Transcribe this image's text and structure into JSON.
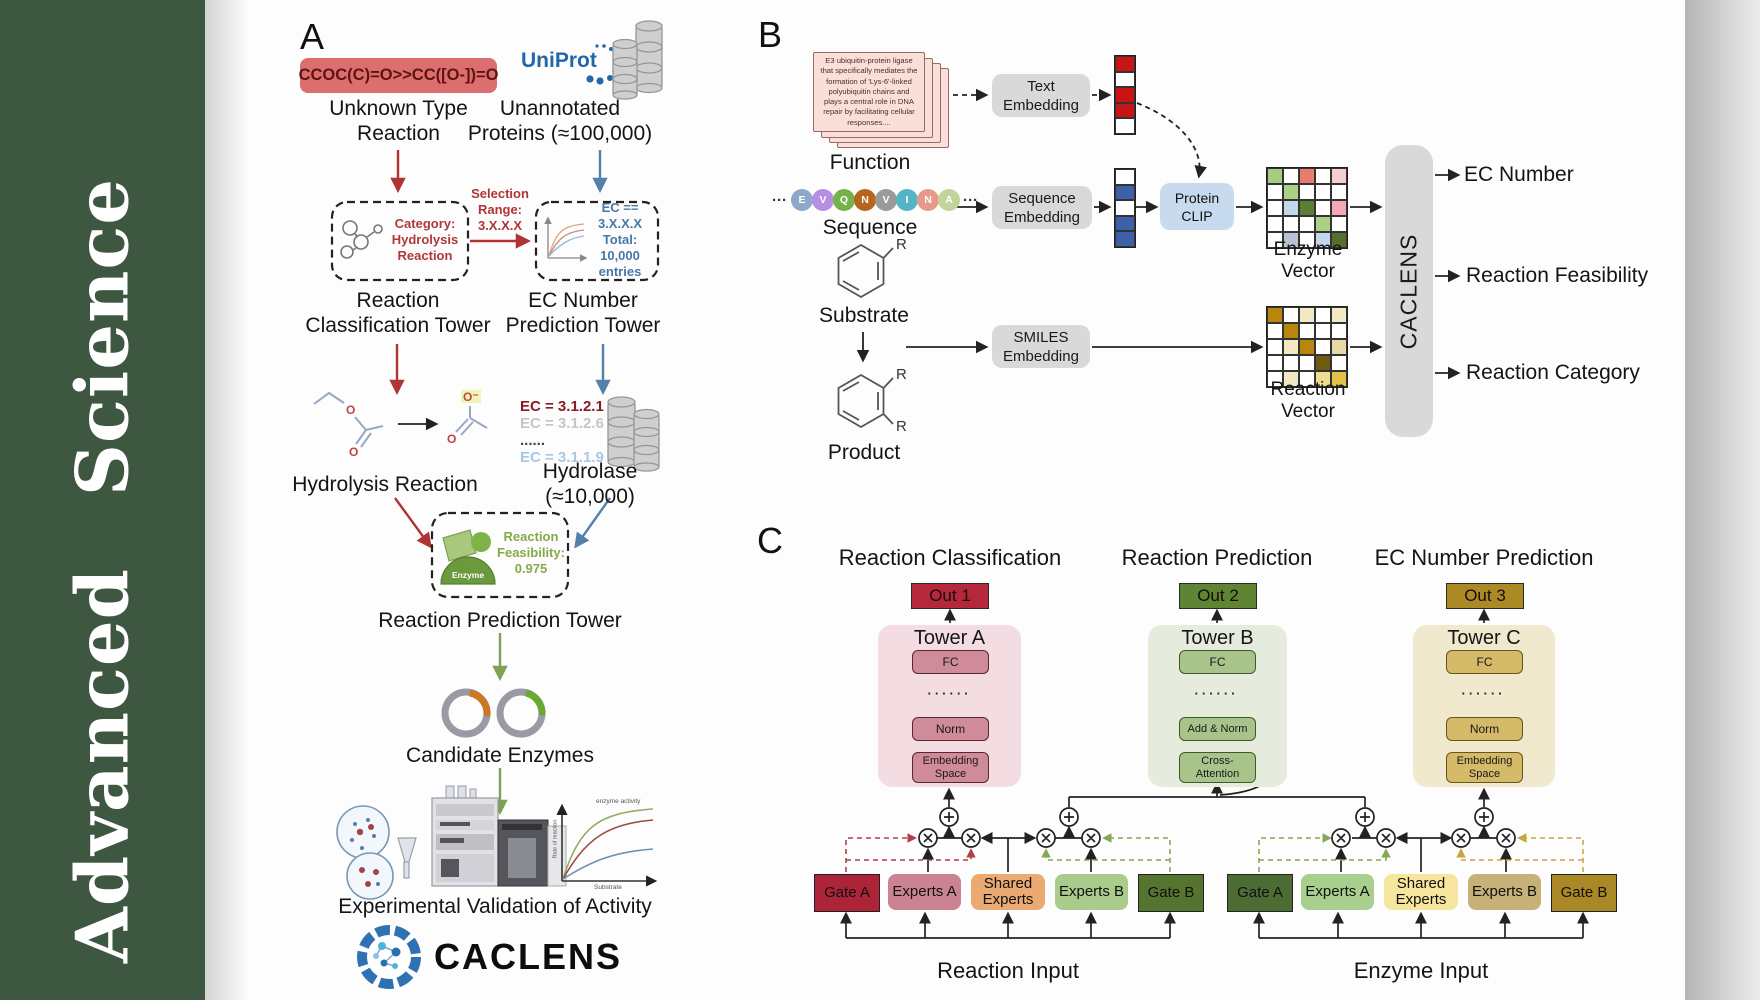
{
  "journal": {
    "name": "Advanced Science"
  },
  "colors": {
    "sidebar": "#3e5741",
    "smiles_bg": "#dc6e6e",
    "smiles_text": "#5c1414",
    "red": "#b03434",
    "blue": "#5580ac",
    "green_arrow": "#7fa055",
    "uniprot_blue": "#2268a8",
    "box_gray": "#d9d9d9",
    "clip_blue": "#c7daee",
    "cat_red": "#b03838",
    "ec_blue": "#4878a8",
    "feas_green": "#85aa4a",
    "out1": "#b5283c",
    "out2": "#5f8433",
    "out3": "#ab8a26",
    "towerA_panel": "#f3dde2",
    "towerA_box": "#d08b9b",
    "towerA_border": "#5a2630",
    "towerB_panel": "#e6ecdd",
    "towerB_box": "#a9c48b",
    "towerB_border": "#3f5a2a",
    "towerC_panel": "#f1e9cd",
    "towerC_box": "#d5ba6a",
    "towerC_border": "#6a5518",
    "gate_a_left": "#ad2338",
    "experts_a_left": "#cb8393",
    "shared_left": "#eaaa72",
    "experts_b_left": "#a9cc8c",
    "gate_b_left": "#55742f",
    "gate_a_right": "#4d6c33",
    "experts_a_right": "#a9cf8e",
    "shared_right": "#f7e69e",
    "experts_b_right": "#c8b178",
    "gate_b_right": "#aa8825"
  },
  "panelA": {
    "label": "A",
    "smiles": "CCOC(C)=O>>CC([O-])=O",
    "unknown_reaction": "Unknown Type\nReaction",
    "uniprot": "UniProt",
    "unannotated": "Unannotated\nProteins (≈100,000)",
    "classification_box": "Category:\nHydrolysis\nReaction",
    "selection": "Selection\nRange:\n3.X.X.X",
    "ec_box": "EC == 3.X.X.X\nTotal: 10,000\nentries",
    "classification_tower": "Reaction\nClassification Tower",
    "ec_tower": "EC Number\nPrediction Tower",
    "ec_list": [
      {
        "text": "EC = 3.1.2.1",
        "color": "#8a1b22"
      },
      {
        "text": "EC = 3.1.2.6",
        "color": "#c6c6c6"
      },
      {
        "text": "......",
        "color": "#444444"
      },
      {
        "text": "EC = 3.1.1.9",
        "color": "#a9c6e2"
      }
    ],
    "hydrolysis": "Hydrolysis Reaction",
    "hydrolase": "Hydrolase (≈10,000)",
    "atoms": {
      "o": "O",
      "o_minus": "O⁻"
    },
    "enzyme_label": "Enzyme",
    "feasibility": "Reaction\nFeasibility:\n0.975",
    "prediction_tower": "Reaction Prediction Tower",
    "candidate": "Candidate Enzymes",
    "plot": {
      "curve_label": "enzyme activity",
      "ylabel": "Rate of reaction",
      "xlabel": "Substrate"
    },
    "validation": "Experimental Validation of Activity",
    "brand": "CACLENS"
  },
  "panelB": {
    "label": "B",
    "function_card": "E3 ubiquitin-protein ligase\nthat specifically mediates the\nformation of 'Lys-6'-linked\npolyubiquitin chains and\nplays a central role in DNA\nrepair by facilitating cellular\nresponses....",
    "function": "Function",
    "dots": "···",
    "sequence": [
      {
        "letter": "E",
        "color": "#8fa8c8"
      },
      {
        "letter": "V",
        "color": "#b78ee0"
      },
      {
        "letter": "Q",
        "color": "#76b14c"
      },
      {
        "letter": "N",
        "color": "#b5651d"
      },
      {
        "letter": "V",
        "color": "#9a9a9a"
      },
      {
        "letter": "I",
        "color": "#53b4c4"
      },
      {
        "letter": "N",
        "color": "#e89a8a"
      },
      {
        "letter": "A",
        "color": "#c3d49a"
      }
    ],
    "sequence_label": "Sequence",
    "substrate": "Substrate",
    "product": "Product",
    "r": "R",
    "text_embedding": "Text\nEmbedding",
    "sequence_embedding": "Sequence\nEmbedding",
    "smiles_embedding": "SMILES\nEmbedding",
    "protein_clip": "Protein\nCLIP",
    "text_vector": [
      "#c81414",
      "#ffffff",
      "#c81414",
      "#c81414",
      "#ffffff"
    ],
    "seq_vector": [
      "#ffffff",
      "#3d60a8",
      "#ffffff",
      "#3d60a8",
      "#3d60a8"
    ],
    "enzyme_vector": {
      "label": "Enzyme Vector",
      "cells": [
        "#a5cd7f",
        "#ffffff",
        "#e87c72",
        "#ffffff",
        "#f5cdd3",
        "#ffffff",
        "#abd184",
        "#ffffff",
        "#ffffff",
        "#ffffff",
        "#ffffff",
        "#c6d7ea",
        "#5a7e33",
        "#ffffff",
        "#f2a9b1",
        "#ffffff",
        "#ffffff",
        "#ffffff",
        "#abd184",
        "#ffffff",
        "#ffffff",
        "#b7c3d3",
        "#ffffff",
        "#c6d7ea",
        "#55702d"
      ]
    },
    "reaction_vector": {
      "label": "Reaction Vector",
      "cells": [
        "#b8860b",
        "#ffffff",
        "#f3e9c3",
        "#ffffff",
        "#f3e9c3",
        "#ffffff",
        "#b8860b",
        "#ffffff",
        "#ffffff",
        "#ffffff",
        "#ffffff",
        "#f3e9c3",
        "#b8860b",
        "#ffffff",
        "#e9d9a8",
        "#ffffff",
        "#ffffff",
        "#ffffff",
        "#6f5a14",
        "#ffffff",
        "#ffffff",
        "#f3e9c3",
        "#ffffff",
        "#f0dc8e",
        "#e3c245"
      ]
    },
    "caclens": "CACLENS",
    "outputs": [
      "EC Number",
      "Reaction Feasibility",
      "Reaction Category"
    ]
  },
  "panelC": {
    "label": "C",
    "towers": [
      {
        "title": "Reaction Classification",
        "out": "Out 1",
        "name": "Tower A",
        "top": "FC",
        "dots": "······",
        "mid": "Norm",
        "bottom": "Embedding\nSpace"
      },
      {
        "title": "Reaction Prediction",
        "out": "Out 2",
        "name": "Tower B",
        "top": "FC",
        "dots": "······",
        "mid": "Add & Norm",
        "bottom": "Cross-\nAttention"
      },
      {
        "title": "EC Number Prediction",
        "out": "Out 3",
        "name": "Tower C",
        "top": "FC",
        "dots": "······",
        "mid": "Norm",
        "bottom": "Embedding\nSpace"
      }
    ],
    "moe": [
      {
        "input": "Reaction Input",
        "boxes": [
          "Gate A",
          "Experts A",
          "Shared\nExperts",
          "Experts B",
          "Gate B"
        ]
      },
      {
        "input": "Enzyme Input",
        "boxes": [
          "Gate A",
          "Experts A",
          "Shared\nExperts",
          "Experts B",
          "Gate B"
        ]
      }
    ]
  }
}
